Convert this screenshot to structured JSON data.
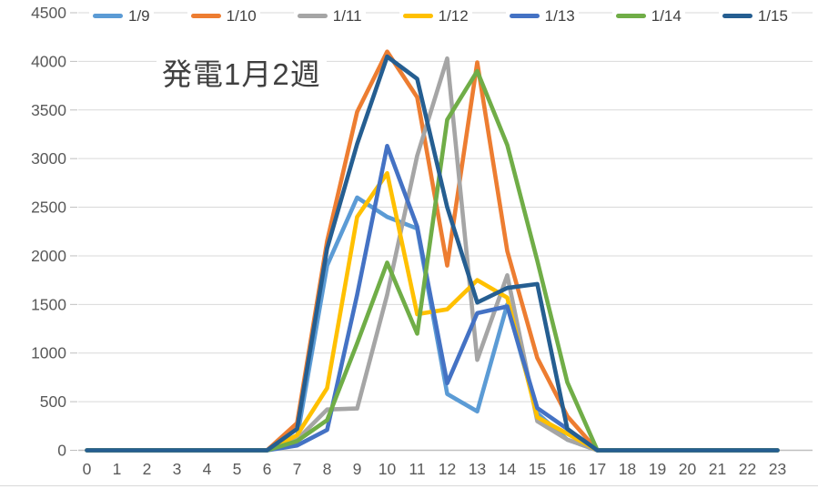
{
  "chart_data": {
    "type": "line",
    "title": "発電1月2週",
    "xlabel": "",
    "ylabel": "",
    "ylim": [
      0,
      4500
    ],
    "y_step": 500,
    "grid": true,
    "legend_position": "top",
    "x_labels": [
      "0",
      "1",
      "2",
      "3",
      "4",
      "5",
      "6",
      "7",
      "8",
      "9",
      "10",
      "11",
      "12",
      "13",
      "14",
      "15",
      "16",
      "17",
      "18",
      "19",
      "20",
      "21",
      "22",
      "23"
    ],
    "y_tick_labels": [
      "0",
      "500",
      "1000",
      "1500",
      "2000",
      "2500",
      "3000",
      "3500",
      "4000",
      "4500"
    ],
    "series": [
      {
        "name": "1/9",
        "color": "#5B9BD5",
        "values": [
          0,
          0,
          0,
          0,
          0,
          0,
          0,
          130,
          1900,
          2600,
          2400,
          2280,
          580,
          400,
          1500,
          380,
          110,
          0,
          0,
          0,
          0,
          0,
          0,
          0
        ]
      },
      {
        "name": "1/10",
        "color": "#ED7D31",
        "values": [
          0,
          0,
          0,
          0,
          0,
          0,
          0,
          280,
          2150,
          3480,
          4100,
          3630,
          1900,
          3990,
          2050,
          950,
          350,
          0,
          0,
          0,
          0,
          0,
          0,
          0
        ]
      },
      {
        "name": "1/11",
        "color": "#A5A5A5",
        "values": [
          0,
          0,
          0,
          0,
          0,
          0,
          0,
          110,
          420,
          430,
          1600,
          3030,
          4030,
          930,
          1800,
          300,
          110,
          0,
          0,
          0,
          0,
          0,
          0,
          0
        ]
      },
      {
        "name": "1/12",
        "color": "#FFC000",
        "values": [
          0,
          0,
          0,
          0,
          0,
          0,
          0,
          155,
          640,
          2400,
          2850,
          1400,
          1450,
          1750,
          1570,
          340,
          170,
          0,
          0,
          0,
          0,
          0,
          0,
          0
        ]
      },
      {
        "name": "1/13",
        "color": "#4472C4",
        "values": [
          0,
          0,
          0,
          0,
          0,
          0,
          0,
          50,
          210,
          1600,
          3130,
          2300,
          690,
          1410,
          1480,
          435,
          220,
          0,
          0,
          0,
          0,
          0,
          0,
          0
        ]
      },
      {
        "name": "1/14",
        "color": "#70AD47",
        "values": [
          0,
          0,
          0,
          0,
          0,
          0,
          0,
          95,
          310,
          1100,
          1930,
          1200,
          3400,
          3900,
          3140,
          1950,
          700,
          0,
          0,
          0,
          0,
          0,
          0,
          0
        ]
      },
      {
        "name": "1/15",
        "color": "#255E91",
        "values": [
          0,
          0,
          0,
          0,
          0,
          0,
          0,
          220,
          2075,
          3150,
          4050,
          3820,
          2500,
          1520,
          1670,
          1710,
          220,
          0,
          0,
          0,
          0,
          0,
          0,
          0
        ]
      }
    ],
    "colors": {
      "gridline": "#D9D9D9",
      "axis_line": "#BFBFBF",
      "tick_label": "#595959",
      "legend_text": "#404040"
    }
  }
}
